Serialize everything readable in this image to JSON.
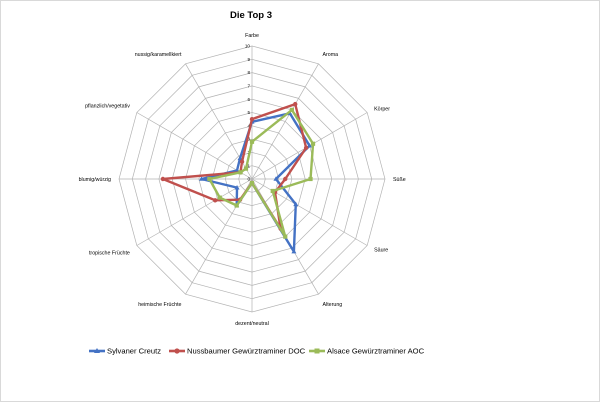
{
  "chart_data": {
    "type": "radar",
    "title": "Die Top 3",
    "categories": [
      "Farbe",
      "Aroma",
      "Körper",
      "Süße",
      "Säure",
      "Alterung",
      "dezent/neutral",
      "heimische Früchte",
      "tropische Früchte",
      "blumig/würzig",
      "pflanzlich/vegetativ",
      "nussig/karamellkiert"
    ],
    "ticks": [
      0,
      1,
      2,
      3,
      4,
      5,
      6,
      7,
      8,
      9,
      10
    ],
    "range": [
      0,
      10
    ],
    "legend_position": "bottom",
    "series": [
      {
        "name": "Sylvaner Creutz",
        "color": "#4472C4",
        "values": [
          4.3,
          5.7,
          5.0,
          1.8,
          3.8,
          6.3,
          0.3,
          2.3,
          1.3,
          3.8,
          1.3,
          1.8
        ]
      },
      {
        "name": "Nussbaumer Gewürztraminer DOC",
        "color": "#C0504D",
        "values": [
          4.5,
          6.5,
          4.7,
          2.5,
          2.0,
          4.3,
          0.3,
          1.8,
          3.2,
          6.7,
          1.0,
          1.5
        ]
      },
      {
        "name": "Alsace Gewürztraminer AOC",
        "color": "#9BBB59",
        "values": [
          2.8,
          6.0,
          5.3,
          4.4,
          1.8,
          5.0,
          0.3,
          2.3,
          2.8,
          3.2,
          1.0,
          0.9
        ]
      }
    ]
  }
}
